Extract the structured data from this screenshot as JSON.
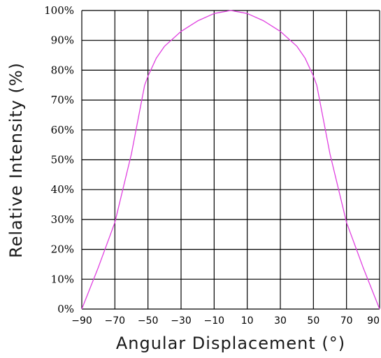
{
  "chart_data": {
    "type": "line",
    "title": "",
    "xlabel": "Angular Displacement (°)",
    "ylabel": "Relative Intensity (%)",
    "xlim": [
      -90,
      90
    ],
    "ylim": [
      0,
      100
    ],
    "grid": true,
    "x_tick_values": [
      -90,
      -70,
      -50,
      -30,
      -10,
      10,
      30,
      50,
      70,
      90
    ],
    "x_tick_labels": [
      "−90",
      "−70",
      "−50",
      "−30",
      "−10",
      "10",
      "30",
      "50",
      "70",
      "90"
    ],
    "y_tick_values": [
      0,
      10,
      20,
      30,
      40,
      50,
      60,
      70,
      80,
      90,
      100
    ],
    "y_tick_labels": [
      "0%",
      "10%",
      "20%",
      "30%",
      "40%",
      "50%",
      "60%",
      "70%",
      "80%",
      "90%",
      "100%"
    ],
    "series": [
      {
        "color": "#e040e0",
        "x": [
          -90,
          -80,
          -70,
          -60,
          -52,
          -50,
          -45,
          -40,
          -30,
          -20,
          -10,
          0,
          10,
          20,
          30,
          40,
          45,
          50,
          52,
          60,
          70,
          80,
          90
        ],
        "y": [
          0,
          14,
          29,
          52,
          75,
          78,
          84,
          88,
          93,
          96.5,
          99,
          100,
          99,
          96.5,
          93,
          88,
          84,
          78,
          75,
          52,
          29,
          14,
          0
        ]
      }
    ]
  }
}
